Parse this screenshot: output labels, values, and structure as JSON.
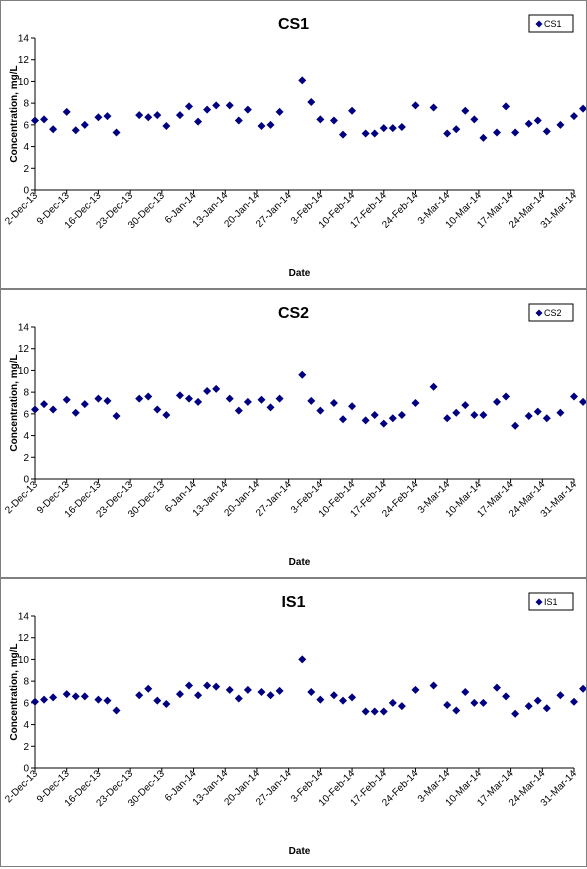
{
  "chart_data": [
    {
      "type": "scatter",
      "title": "CS1",
      "xlabel": "Date",
      "ylabel": "Concentration, mg/L",
      "ylim": [
        0,
        14
      ],
      "yticks": [
        0,
        2,
        4,
        6,
        8,
        10,
        12,
        14
      ],
      "xlim": [
        "2013-12-02",
        "2014-03-31"
      ],
      "xticks": [
        "2-Dec-13",
        "9-Dec-13",
        "16-Dec-13",
        "23-Dec-13",
        "30-Dec-13",
        "6-Jan-14",
        "13-Jan-14",
        "20-Jan-14",
        "27-Jan-14",
        "3-Feb-14",
        "10-Feb-14",
        "17-Feb-14",
        "24-Feb-14",
        "3-Mar-14",
        "10-Mar-14",
        "17-Mar-14",
        "24-Mar-14",
        "31-Mar-14"
      ],
      "legend_position": "top-right",
      "marker": "diamond",
      "color": "#000080",
      "series": [
        {
          "name": "CS1",
          "points": [
            {
              "x": "2013-12-02",
              "y": 6.4
            },
            {
              "x": "2013-12-04",
              "y": 6.5
            },
            {
              "x": "2013-12-06",
              "y": 5.6
            },
            {
              "x": "2013-12-09",
              "y": 7.2
            },
            {
              "x": "2013-12-11",
              "y": 5.5
            },
            {
              "x": "2013-12-13",
              "y": 6.0
            },
            {
              "x": "2013-12-16",
              "y": 6.7
            },
            {
              "x": "2013-12-18",
              "y": 6.8
            },
            {
              "x": "2013-12-20",
              "y": 5.3
            },
            {
              "x": "2013-12-25",
              "y": 6.9
            },
            {
              "x": "2013-12-27",
              "y": 6.7
            },
            {
              "x": "2013-12-29",
              "y": 6.9
            },
            {
              "x": "2013-12-31",
              "y": 5.9
            },
            {
              "x": "2014-01-03",
              "y": 6.9
            },
            {
              "x": "2014-01-05",
              "y": 7.7
            },
            {
              "x": "2014-01-07",
              "y": 6.3
            },
            {
              "x": "2014-01-09",
              "y": 7.4
            },
            {
              "x": "2014-01-11",
              "y": 7.8
            },
            {
              "x": "2014-01-14",
              "y": 7.8
            },
            {
              "x": "2014-01-16",
              "y": 6.4
            },
            {
              "x": "2014-01-18",
              "y": 7.4
            },
            {
              "x": "2014-01-21",
              "y": 5.9
            },
            {
              "x": "2014-01-23",
              "y": 6.0
            },
            {
              "x": "2014-01-25",
              "y": 7.2
            },
            {
              "x": "2014-01-30",
              "y": 10.1
            },
            {
              "x": "2014-02-01",
              "y": 8.1
            },
            {
              "x": "2014-02-03",
              "y": 6.5
            },
            {
              "x": "2014-02-06",
              "y": 6.4
            },
            {
              "x": "2014-02-08",
              "y": 5.1
            },
            {
              "x": "2014-02-10",
              "y": 7.3
            },
            {
              "x": "2014-02-13",
              "y": 5.2
            },
            {
              "x": "2014-02-15",
              "y": 5.2
            },
            {
              "x": "2014-02-17",
              "y": 5.7
            },
            {
              "x": "2014-02-19",
              "y": 5.7
            },
            {
              "x": "2014-02-21",
              "y": 5.8
            },
            {
              "x": "2014-02-24",
              "y": 7.8
            },
            {
              "x": "2014-02-28",
              "y": 7.6
            },
            {
              "x": "2014-03-03",
              "y": 5.2
            },
            {
              "x": "2014-03-05",
              "y": 5.6
            },
            {
              "x": "2014-03-07",
              "y": 7.3
            },
            {
              "x": "2014-03-09",
              "y": 6.5
            },
            {
              "x": "2014-03-11",
              "y": 4.8
            },
            {
              "x": "2014-03-14",
              "y": 5.3
            },
            {
              "x": "2014-03-16",
              "y": 7.7
            },
            {
              "x": "2014-03-18",
              "y": 5.3
            },
            {
              "x": "2014-03-21",
              "y": 6.1
            },
            {
              "x": "2014-03-23",
              "y": 6.4
            },
            {
              "x": "2014-03-25",
              "y": 5.4
            },
            {
              "x": "2014-03-28",
              "y": 6.0
            },
            {
              "x": "2014-03-31",
              "y": 6.8
            },
            {
              "x": "2014-04-02",
              "y": 7.5
            },
            {
              "x": "2014-04-04",
              "y": 5.3
            }
          ]
        }
      ]
    },
    {
      "type": "scatter",
      "title": "CS2",
      "xlabel": "Date",
      "ylabel": "Concentration, mg/L",
      "ylim": [
        0,
        14
      ],
      "yticks": [
        0,
        2,
        4,
        6,
        8,
        10,
        12,
        14
      ],
      "xlim": [
        "2013-12-02",
        "2014-03-31"
      ],
      "xticks": [
        "2-Dec-13",
        "9-Dec-13",
        "16-Dec-13",
        "23-Dec-13",
        "30-Dec-13",
        "6-Jan-14",
        "13-Jan-14",
        "20-Jan-14",
        "27-Jan-14",
        "3-Feb-14",
        "10-Feb-14",
        "17-Feb-14",
        "24-Feb-14",
        "3-Mar-14",
        "10-Mar-14",
        "17-Mar-14",
        "24-Mar-14",
        "31-Mar-14"
      ],
      "legend_position": "top-right",
      "marker": "diamond",
      "color": "#000080",
      "series": [
        {
          "name": "CS2",
          "points": [
            {
              "x": "2013-12-02",
              "y": 6.4
            },
            {
              "x": "2013-12-04",
              "y": 6.9
            },
            {
              "x": "2013-12-06",
              "y": 6.4
            },
            {
              "x": "2013-12-09",
              "y": 7.3
            },
            {
              "x": "2013-12-11",
              "y": 6.1
            },
            {
              "x": "2013-12-13",
              "y": 6.9
            },
            {
              "x": "2013-12-16",
              "y": 7.4
            },
            {
              "x": "2013-12-18",
              "y": 7.2
            },
            {
              "x": "2013-12-20",
              "y": 5.8
            },
            {
              "x": "2013-12-25",
              "y": 7.4
            },
            {
              "x": "2013-12-27",
              "y": 7.6
            },
            {
              "x": "2013-12-29",
              "y": 6.4
            },
            {
              "x": "2013-12-31",
              "y": 5.9
            },
            {
              "x": "2014-01-03",
              "y": 7.7
            },
            {
              "x": "2014-01-05",
              "y": 7.4
            },
            {
              "x": "2014-01-07",
              "y": 7.1
            },
            {
              "x": "2014-01-09",
              "y": 8.1
            },
            {
              "x": "2014-01-11",
              "y": 8.3
            },
            {
              "x": "2014-01-14",
              "y": 7.4
            },
            {
              "x": "2014-01-16",
              "y": 6.3
            },
            {
              "x": "2014-01-18",
              "y": 7.1
            },
            {
              "x": "2014-01-21",
              "y": 7.3
            },
            {
              "x": "2014-01-23",
              "y": 6.6
            },
            {
              "x": "2014-01-25",
              "y": 7.4
            },
            {
              "x": "2014-01-30",
              "y": 9.6
            },
            {
              "x": "2014-02-01",
              "y": 7.2
            },
            {
              "x": "2014-02-03",
              "y": 6.3
            },
            {
              "x": "2014-02-06",
              "y": 7.0
            },
            {
              "x": "2014-02-08",
              "y": 5.5
            },
            {
              "x": "2014-02-10",
              "y": 6.7
            },
            {
              "x": "2014-02-13",
              "y": 5.4
            },
            {
              "x": "2014-02-15",
              "y": 5.9
            },
            {
              "x": "2014-02-17",
              "y": 5.1
            },
            {
              "x": "2014-02-19",
              "y": 5.6
            },
            {
              "x": "2014-02-21",
              "y": 5.9
            },
            {
              "x": "2014-02-24",
              "y": 7.0
            },
            {
              "x": "2014-02-28",
              "y": 8.5
            },
            {
              "x": "2014-03-03",
              "y": 5.6
            },
            {
              "x": "2014-03-05",
              "y": 6.1
            },
            {
              "x": "2014-03-07",
              "y": 6.8
            },
            {
              "x": "2014-03-09",
              "y": 5.9
            },
            {
              "x": "2014-03-11",
              "y": 5.9
            },
            {
              "x": "2014-03-14",
              "y": 7.1
            },
            {
              "x": "2014-03-16",
              "y": 7.6
            },
            {
              "x": "2014-03-18",
              "y": 4.9
            },
            {
              "x": "2014-03-21",
              "y": 5.8
            },
            {
              "x": "2014-03-23",
              "y": 6.2
            },
            {
              "x": "2014-03-25",
              "y": 5.6
            },
            {
              "x": "2014-03-28",
              "y": 6.1
            },
            {
              "x": "2014-03-31",
              "y": 7.6
            },
            {
              "x": "2014-04-02",
              "y": 7.1
            },
            {
              "x": "2014-04-04",
              "y": 5.6
            }
          ]
        }
      ]
    },
    {
      "type": "scatter",
      "title": "IS1",
      "xlabel": "Date",
      "ylabel": "Concentration, mg/L",
      "ylim": [
        0,
        14
      ],
      "yticks": [
        0,
        2,
        4,
        6,
        8,
        10,
        12,
        14
      ],
      "xlim": [
        "2013-12-02",
        "2014-03-31"
      ],
      "xticks": [
        "2-Dec-13",
        "9-Dec-13",
        "16-Dec-13",
        "23-Dec-13",
        "30-Dec-13",
        "6-Jan-14",
        "13-Jan-14",
        "20-Jan-14",
        "27-Jan-14",
        "3-Feb-14",
        "10-Feb-14",
        "17-Feb-14",
        "24-Feb-14",
        "3-Mar-14",
        "10-Mar-14",
        "17-Mar-14",
        "24-Mar-14",
        "31-Mar-14"
      ],
      "legend_position": "top-right",
      "marker": "diamond",
      "color": "#000080",
      "series": [
        {
          "name": "IS1",
          "points": [
            {
              "x": "2013-12-02",
              "y": 6.1
            },
            {
              "x": "2013-12-04",
              "y": 6.3
            },
            {
              "x": "2013-12-06",
              "y": 6.5
            },
            {
              "x": "2013-12-09",
              "y": 6.8
            },
            {
              "x": "2013-12-11",
              "y": 6.6
            },
            {
              "x": "2013-12-13",
              "y": 6.6
            },
            {
              "x": "2013-12-16",
              "y": 6.3
            },
            {
              "x": "2013-12-18",
              "y": 6.2
            },
            {
              "x": "2013-12-20",
              "y": 5.3
            },
            {
              "x": "2013-12-25",
              "y": 6.7
            },
            {
              "x": "2013-12-27",
              "y": 7.3
            },
            {
              "x": "2013-12-29",
              "y": 6.2
            },
            {
              "x": "2013-12-31",
              "y": 5.9
            },
            {
              "x": "2014-01-03",
              "y": 6.8
            },
            {
              "x": "2014-01-05",
              "y": 7.6
            },
            {
              "x": "2014-01-07",
              "y": 6.7
            },
            {
              "x": "2014-01-09",
              "y": 7.6
            },
            {
              "x": "2014-01-11",
              "y": 7.5
            },
            {
              "x": "2014-01-14",
              "y": 7.2
            },
            {
              "x": "2014-01-16",
              "y": 6.4
            },
            {
              "x": "2014-01-18",
              "y": 7.2
            },
            {
              "x": "2014-01-21",
              "y": 7.0
            },
            {
              "x": "2014-01-23",
              "y": 6.7
            },
            {
              "x": "2014-01-25",
              "y": 7.1
            },
            {
              "x": "2014-01-30",
              "y": 10.0
            },
            {
              "x": "2014-02-01",
              "y": 7.0
            },
            {
              "x": "2014-02-03",
              "y": 6.3
            },
            {
              "x": "2014-02-06",
              "y": 6.7
            },
            {
              "x": "2014-02-08",
              "y": 6.2
            },
            {
              "x": "2014-02-10",
              "y": 6.5
            },
            {
              "x": "2014-02-13",
              "y": 5.2
            },
            {
              "x": "2014-02-15",
              "y": 5.2
            },
            {
              "x": "2014-02-17",
              "y": 5.2
            },
            {
              "x": "2014-02-19",
              "y": 6.0
            },
            {
              "x": "2014-02-21",
              "y": 5.7
            },
            {
              "x": "2014-02-24",
              "y": 7.2
            },
            {
              "x": "2014-02-28",
              "y": 7.6
            },
            {
              "x": "2014-03-03",
              "y": 5.8
            },
            {
              "x": "2014-03-05",
              "y": 5.3
            },
            {
              "x": "2014-03-07",
              "y": 7.0
            },
            {
              "x": "2014-03-09",
              "y": 6.0
            },
            {
              "x": "2014-03-11",
              "y": 6.0
            },
            {
              "x": "2014-03-14",
              "y": 7.4
            },
            {
              "x": "2014-03-16",
              "y": 6.6
            },
            {
              "x": "2014-03-18",
              "y": 5.0
            },
            {
              "x": "2014-03-21",
              "y": 5.7
            },
            {
              "x": "2014-03-23",
              "y": 6.2
            },
            {
              "x": "2014-03-25",
              "y": 5.5
            },
            {
              "x": "2014-03-28",
              "y": 6.7
            },
            {
              "x": "2014-03-31",
              "y": 6.1
            },
            {
              "x": "2014-04-02",
              "y": 7.3
            },
            {
              "x": "2014-04-04",
              "y": 5.7
            }
          ]
        }
      ]
    }
  ]
}
